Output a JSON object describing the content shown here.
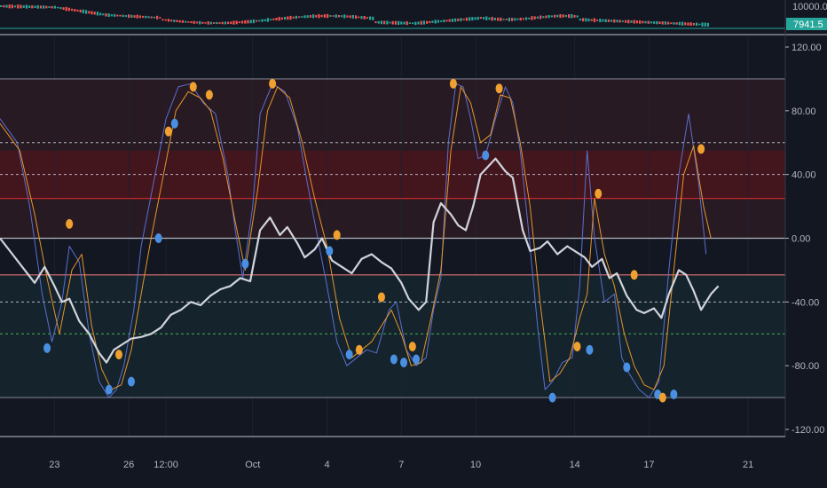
{
  "price_pane": {
    "y_axis_top_label": "10000.0",
    "last_price_label": "7941.5",
    "colors": {
      "up": "#26a69a",
      "down": "#ef5350",
      "label_bg": "#26a69a"
    }
  },
  "chart_data": {
    "type": "line",
    "title": "",
    "xlabel": "",
    "ylabel": "",
    "ylim": [
      -120,
      120
    ],
    "y_ticks": [
      "120.00",
      "80.00",
      "40.00",
      "0.00",
      "-40.00",
      "-80.00",
      "-120.00"
    ],
    "x_tick_labels": [
      "23",
      "26",
      "12:00",
      "Oct",
      "4",
      "7",
      "10",
      "14",
      "17",
      "21"
    ],
    "x_tick_days": [
      23,
      26,
      27.5,
      31,
      34,
      37,
      40,
      44,
      47,
      51
    ],
    "x_range_days": [
      20.8,
      52.5
    ],
    "reference_levels": [
      {
        "value": 100,
        "style": "solid",
        "color": "#787b86"
      },
      {
        "value": 60,
        "style": "dotted",
        "color": "#b2b5be"
      },
      {
        "value": 40,
        "style": "dotted",
        "color": "#b2b5be"
      },
      {
        "value": 25,
        "style": "solid",
        "color": "#c62828"
      },
      {
        "value": 0,
        "style": "solid",
        "color": "#b2b5be"
      },
      {
        "value": -23,
        "style": "solid",
        "color": "#e57373"
      },
      {
        "value": -40,
        "style": "dotted",
        "color": "#b2b5be"
      },
      {
        "value": -60,
        "style": "dotted",
        "color": "#4caf50"
      },
      {
        "value": -100,
        "style": "solid",
        "color": "#787b86"
      }
    ],
    "zones": [
      {
        "from": 100,
        "to": 0,
        "color": "#e53935",
        "opacity": 0.1
      },
      {
        "from": 55,
        "to": 25,
        "color": "#d50000",
        "opacity": 0.16
      },
      {
        "from": -23,
        "to": -100,
        "color": "#26a69a",
        "opacity": 0.09
      }
    ],
    "series": [
      {
        "color": "#5b6fd1",
        "width": 1,
        "points": [
          [
            20.8,
            75
          ],
          [
            21.5,
            60
          ],
          [
            22,
            20
          ],
          [
            22.5,
            -35
          ],
          [
            22.9,
            -65
          ],
          [
            23.3,
            -40
          ],
          [
            23.6,
            -5
          ],
          [
            24,
            -15
          ],
          [
            24.4,
            -60
          ],
          [
            24.8,
            -90
          ],
          [
            25.2,
            -100
          ],
          [
            25.5,
            -95
          ],
          [
            25.8,
            -80
          ],
          [
            26.2,
            -45
          ],
          [
            26.5,
            -5
          ],
          [
            27,
            35
          ],
          [
            27.5,
            75
          ],
          [
            28,
            95
          ],
          [
            28.5,
            97
          ],
          [
            29,
            85
          ],
          [
            29.5,
            78
          ],
          [
            30,
            40
          ],
          [
            30.3,
            5
          ],
          [
            30.6,
            -25
          ],
          [
            31,
            20
          ],
          [
            31.3,
            78
          ],
          [
            31.8,
            97
          ],
          [
            32.3,
            92
          ],
          [
            32.8,
            70
          ],
          [
            33.2,
            35
          ],
          [
            33.5,
            10
          ],
          [
            34,
            -30
          ],
          [
            34.4,
            -65
          ],
          [
            34.8,
            -80
          ],
          [
            35.2,
            -75
          ],
          [
            35.6,
            -70
          ],
          [
            36,
            -72
          ],
          [
            36.5,
            -45
          ],
          [
            36.8,
            -40
          ],
          [
            37.2,
            -70
          ],
          [
            37.6,
            -80
          ],
          [
            38,
            -75
          ],
          [
            38.3,
            -45
          ],
          [
            38.6,
            -25
          ],
          [
            38.9,
            60
          ],
          [
            39.2,
            97
          ],
          [
            39.5,
            95
          ],
          [
            39.8,
            75
          ],
          [
            40.1,
            50
          ],
          [
            40.4,
            52
          ],
          [
            40.8,
            75
          ],
          [
            41.2,
            95
          ],
          [
            41.5,
            85
          ],
          [
            41.8,
            55
          ],
          [
            42.1,
            10
          ],
          [
            42.5,
            -55
          ],
          [
            42.8,
            -95
          ],
          [
            43.1,
            -90
          ],
          [
            43.5,
            -78
          ],
          [
            43.9,
            -75
          ],
          [
            44.2,
            -30
          ],
          [
            44.5,
            55
          ],
          [
            44.8,
            0
          ],
          [
            45.2,
            -40
          ],
          [
            45.6,
            -35
          ],
          [
            45.9,
            -75
          ],
          [
            46.2,
            -85
          ],
          [
            46.6,
            -95
          ],
          [
            47,
            -100
          ],
          [
            47.4,
            -90
          ],
          [
            47.8,
            -20
          ],
          [
            48.2,
            40
          ],
          [
            48.6,
            78
          ],
          [
            49,
            35
          ],
          [
            49.3,
            -10
          ]
        ]
      },
      {
        "color": "#e6952a",
        "width": 1,
        "points": [
          [
            20.8,
            72
          ],
          [
            21.6,
            55
          ],
          [
            22.2,
            15
          ],
          [
            22.7,
            -25
          ],
          [
            23.2,
            -60
          ],
          [
            23.7,
            -20
          ],
          [
            24.1,
            -10
          ],
          [
            24.5,
            -55
          ],
          [
            24.9,
            -82
          ],
          [
            25.3,
            -95
          ],
          [
            25.7,
            -92
          ],
          [
            26.1,
            -70
          ],
          [
            26.5,
            -35
          ],
          [
            26.9,
            0
          ],
          [
            27.4,
            40
          ],
          [
            27.9,
            80
          ],
          [
            28.4,
            92
          ],
          [
            28.9,
            88
          ],
          [
            29.3,
            80
          ],
          [
            29.8,
            50
          ],
          [
            30.3,
            10
          ],
          [
            30.7,
            -20
          ],
          [
            31.2,
            30
          ],
          [
            31.6,
            80
          ],
          [
            32,
            95
          ],
          [
            32.5,
            88
          ],
          [
            33,
            60
          ],
          [
            33.5,
            25
          ],
          [
            34,
            -5
          ],
          [
            34.5,
            -50
          ],
          [
            35,
            -75
          ],
          [
            35.4,
            -70
          ],
          [
            35.8,
            -65
          ],
          [
            36.2,
            -55
          ],
          [
            36.6,
            -45
          ],
          [
            37,
            -60
          ],
          [
            37.4,
            -80
          ],
          [
            37.8,
            -78
          ],
          [
            38.2,
            -50
          ],
          [
            38.6,
            -20
          ],
          [
            39,
            55
          ],
          [
            39.4,
            95
          ],
          [
            39.8,
            85
          ],
          [
            40.2,
            60
          ],
          [
            40.6,
            65
          ],
          [
            41,
            90
          ],
          [
            41.4,
            88
          ],
          [
            41.8,
            60
          ],
          [
            42.2,
            20
          ],
          [
            42.6,
            -40
          ],
          [
            43,
            -90
          ],
          [
            43.4,
            -85
          ],
          [
            43.8,
            -75
          ],
          [
            44.2,
            -50
          ],
          [
            44.5,
            -35
          ],
          [
            44.8,
            25
          ],
          [
            45.2,
            -10
          ],
          [
            45.6,
            -30
          ],
          [
            46,
            -60
          ],
          [
            46.4,
            -80
          ],
          [
            46.8,
            -92
          ],
          [
            47.2,
            -95
          ],
          [
            47.6,
            -80
          ],
          [
            48,
            -20
          ],
          [
            48.4,
            40
          ],
          [
            48.8,
            58
          ],
          [
            49.2,
            20
          ],
          [
            49.5,
            0
          ]
        ]
      },
      {
        "color": "#d1d4dc",
        "width": 2.2,
        "points": [
          [
            20.8,
            0
          ],
          [
            21.3,
            -10
          ],
          [
            21.8,
            -20
          ],
          [
            22.2,
            -28
          ],
          [
            22.6,
            -18
          ],
          [
            23,
            -30
          ],
          [
            23.3,
            -40
          ],
          [
            23.6,
            -38
          ],
          [
            24,
            -52
          ],
          [
            24.4,
            -60
          ],
          [
            24.8,
            -72
          ],
          [
            25.1,
            -78
          ],
          [
            25.4,
            -70
          ],
          [
            25.8,
            -66
          ],
          [
            26.1,
            -63
          ],
          [
            26.5,
            -62
          ],
          [
            26.9,
            -60
          ],
          [
            27.3,
            -56
          ],
          [
            27.7,
            -48
          ],
          [
            28.1,
            -45
          ],
          [
            28.5,
            -40
          ],
          [
            28.9,
            -42
          ],
          [
            29.3,
            -36
          ],
          [
            29.7,
            -32
          ],
          [
            30.1,
            -30
          ],
          [
            30.5,
            -25
          ],
          [
            30.9,
            -27
          ],
          [
            31.3,
            5
          ],
          [
            31.7,
            13
          ],
          [
            32.1,
            2
          ],
          [
            32.4,
            7
          ],
          [
            32.8,
            -3
          ],
          [
            33.1,
            -12
          ],
          [
            33.5,
            -7
          ],
          [
            33.8,
            0
          ],
          [
            34.2,
            -14
          ],
          [
            34.6,
            -18
          ],
          [
            35,
            -22
          ],
          [
            35.4,
            -13
          ],
          [
            35.8,
            -10
          ],
          [
            36.2,
            -15
          ],
          [
            36.6,
            -19
          ],
          [
            37,
            -28
          ],
          [
            37.3,
            -38
          ],
          [
            37.7,
            -45
          ],
          [
            38,
            -40
          ],
          [
            38.3,
            10
          ],
          [
            38.6,
            22
          ],
          [
            39,
            15
          ],
          [
            39.3,
            8
          ],
          [
            39.6,
            5
          ],
          [
            39.9,
            20
          ],
          [
            40.2,
            40
          ],
          [
            40.5,
            45
          ],
          [
            40.8,
            50
          ],
          [
            41.2,
            42
          ],
          [
            41.5,
            38
          ],
          [
            41.9,
            5
          ],
          [
            42.2,
            -8
          ],
          [
            42.6,
            -6
          ],
          [
            42.9,
            -2
          ],
          [
            43.3,
            -10
          ],
          [
            43.7,
            -5
          ],
          [
            44.1,
            -9
          ],
          [
            44.4,
            -12
          ],
          [
            44.7,
            -18
          ],
          [
            45.1,
            -13
          ],
          [
            45.4,
            -25
          ],
          [
            45.7,
            -22
          ],
          [
            46.1,
            -36
          ],
          [
            46.5,
            -45
          ],
          [
            46.8,
            -47
          ],
          [
            47.2,
            -44
          ],
          [
            47.5,
            -50
          ],
          [
            47.8,
            -35
          ],
          [
            48.2,
            -20
          ],
          [
            48.5,
            -23
          ],
          [
            48.8,
            -33
          ],
          [
            49.1,
            -45
          ],
          [
            49.5,
            -35
          ],
          [
            49.8,
            -30
          ]
        ]
      }
    ],
    "markers": [
      {
        "x": 22.7,
        "y": -69,
        "color": "#4a90e2"
      },
      {
        "x": 23.6,
        "y": 9,
        "color": "#f0a030"
      },
      {
        "x": 25.2,
        "y": -95,
        "color": "#4a90e2"
      },
      {
        "x": 25.6,
        "y": -73,
        "color": "#f0a030"
      },
      {
        "x": 26.1,
        "y": -90,
        "color": "#4a90e2"
      },
      {
        "x": 27.2,
        "y": 0,
        "color": "#4a90e2"
      },
      {
        "x": 27.6,
        "y": 67,
        "color": "#f0a030"
      },
      {
        "x": 27.85,
        "y": 72,
        "color": "#4a90e2"
      },
      {
        "x": 28.6,
        "y": 95,
        "color": "#f0a030"
      },
      {
        "x": 29.25,
        "y": 90,
        "color": "#f0a030"
      },
      {
        "x": 30.7,
        "y": -16,
        "color": "#4a90e2"
      },
      {
        "x": 31.8,
        "y": 97,
        "color": "#f0a030"
      },
      {
        "x": 34.1,
        "y": -8,
        "color": "#4a90e2"
      },
      {
        "x": 34.4,
        "y": 2,
        "color": "#f0a030"
      },
      {
        "x": 34.9,
        "y": -73,
        "color": "#4a90e2"
      },
      {
        "x": 35.3,
        "y": -70,
        "color": "#f0a030"
      },
      {
        "x": 36.2,
        "y": -37,
        "color": "#f0a030"
      },
      {
        "x": 36.7,
        "y": -76,
        "color": "#4a90e2"
      },
      {
        "x": 37.1,
        "y": -78,
        "color": "#4a90e2"
      },
      {
        "x": 37.45,
        "y": -68,
        "color": "#f0a030"
      },
      {
        "x": 37.6,
        "y": -76,
        "color": "#4a90e2"
      },
      {
        "x": 39.1,
        "y": 97,
        "color": "#f0a030"
      },
      {
        "x": 40.4,
        "y": 52,
        "color": "#4a90e2"
      },
      {
        "x": 40.95,
        "y": 94,
        "color": "#f0a030"
      },
      {
        "x": 43.1,
        "y": -100,
        "color": "#4a90e2"
      },
      {
        "x": 44.1,
        "y": -68,
        "color": "#f0a030"
      },
      {
        "x": 44.6,
        "y": -70,
        "color": "#4a90e2"
      },
      {
        "x": 44.95,
        "y": 28,
        "color": "#f0a030"
      },
      {
        "x": 46.1,
        "y": -81,
        "color": "#4a90e2"
      },
      {
        "x": 46.4,
        "y": -23,
        "color": "#f0a030"
      },
      {
        "x": 47.35,
        "y": -98,
        "color": "#4a90e2"
      },
      {
        "x": 47.55,
        "y": -100,
        "color": "#f0a030"
      },
      {
        "x": 48.0,
        "y": -98,
        "color": "#4a90e2"
      },
      {
        "x": 49.1,
        "y": 56,
        "color": "#f0a030"
      }
    ]
  }
}
